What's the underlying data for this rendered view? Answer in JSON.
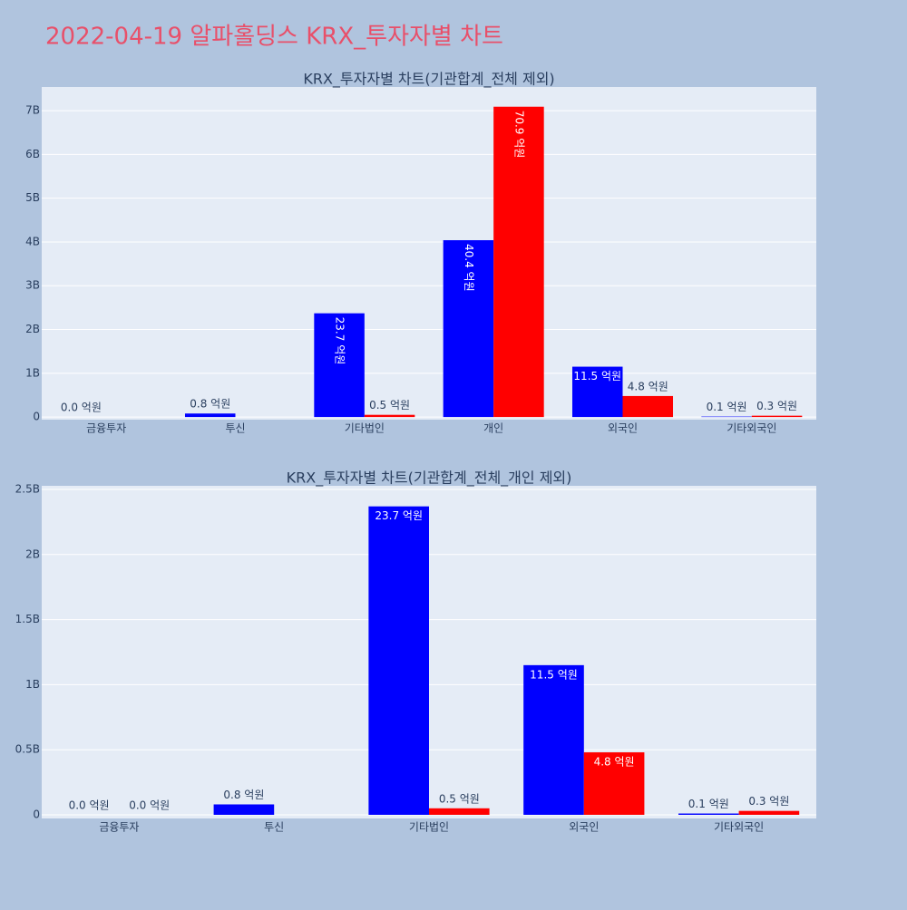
{
  "title": "2022-04-19 알파홀딩스 KRX_투자자별 차트",
  "chart_data": [
    {
      "type": "bar",
      "title": "KRX_투자자별 차트(기관합계_전체 제외)",
      "categories": [
        "금융투자",
        "투신",
        "기타법인",
        "개인",
        "외국인",
        "기타외국인"
      ],
      "series": [
        {
          "color": "#0000ff",
          "values": [
            0,
            80000000,
            2370000000,
            4040000000,
            1150000000,
            10000000
          ],
          "value_labels": [
            "0.0 억원",
            "0.8 억원",
            "23.7 억원",
            "40.4 억원",
            "11.5 억원",
            "0.1 억원"
          ]
        },
        {
          "color": "#ff0000",
          "values": [
            null,
            null,
            50000000,
            7090000000,
            480000000,
            30000000
          ],
          "value_labels": [
            null,
            null,
            "0.5 억원",
            "70.9 억원",
            "4.8 억원",
            "0.3 억원"
          ]
        }
      ],
      "ylim": [
        -60000000,
        7540000000
      ],
      "yticks": [
        0,
        {
          "value": 1000000000,
          "label": "1B"
        },
        {
          "value": 2000000000,
          "label": "2B"
        },
        {
          "value": 3000000000,
          "label": "3B"
        },
        {
          "value": 4000000000,
          "label": "4B"
        },
        {
          "value": 5000000000,
          "label": "5B"
        },
        {
          "value": 6000000000,
          "label": "6B"
        },
        {
          "value": 7000000000,
          "label": "7B"
        }
      ],
      "grid": true
    },
    {
      "type": "bar",
      "title": "KRX_투자자별 차트(기관합계_전체_개인 제외)",
      "categories": [
        "금융투자",
        "투신",
        "기타법인",
        "외국인",
        "기타외국인"
      ],
      "series": [
        {
          "color": "#0000ff",
          "values": [
            0,
            80000000,
            2370000000,
            1150000000,
            10000000
          ],
          "value_labels": [
            "0.0 억원",
            "0.8 억원",
            "23.7 억원",
            "11.5 억원",
            "0.1 억원"
          ]
        },
        {
          "color": "#ff0000",
          "values": [
            0,
            null,
            50000000,
            480000000,
            30000000
          ],
          "value_labels": [
            "0.0 억원",
            null,
            "0.5 억원",
            "4.8 억원",
            "0.3 억원"
          ]
        }
      ],
      "ylim": [
        -28000000,
        2528000000
      ],
      "yticks": [
        0,
        {
          "value": 500000000,
          "label": "0.5B"
        },
        {
          "value": 1000000000,
          "label": "1B"
        },
        {
          "value": 1500000000,
          "label": "1.5B"
        },
        {
          "value": 2000000000,
          "label": "2B"
        },
        {
          "value": 2500000000,
          "label": "2.5B"
        }
      ],
      "grid": true
    }
  ]
}
